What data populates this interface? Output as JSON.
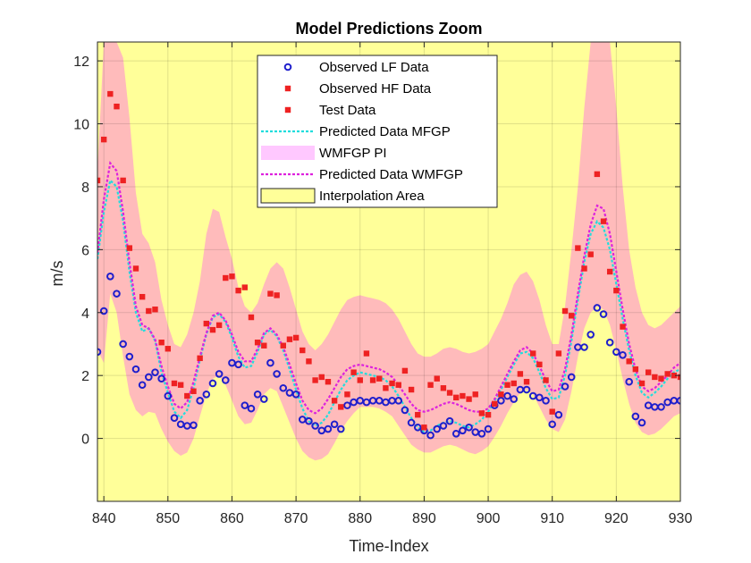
{
  "chart_data": {
    "type": "line",
    "title": "Model Predictions Zoom",
    "xlabel": "Time-Index",
    "ylabel": "m/s",
    "xlim": [
      839,
      930
    ],
    "ylim": [
      -2,
      12.6
    ],
    "xticks": [
      840,
      850,
      860,
      870,
      880,
      890,
      900,
      910,
      920,
      930
    ],
    "yticks": [
      0,
      2,
      4,
      6,
      8,
      10,
      12
    ],
    "grid": true,
    "legend_position": "top-center",
    "colors": {
      "background": "#ffff99",
      "band": "#ffbbbb",
      "lf": "#1f1fcc",
      "hf": "#ee2222",
      "mfgp": "#22dddd",
      "wmfgp": "#dd22dd",
      "wmfgp_pi": "#ffc8ff"
    },
    "legend": [
      {
        "label": "Observed LF Data",
        "kind": "lf"
      },
      {
        "label": "Observed HF Data",
        "kind": "hf"
      },
      {
        "label": "Test Data",
        "kind": "test"
      },
      {
        "label": "Predicted Data MFGP",
        "kind": "mfgp"
      },
      {
        "label": "WMFGP PI",
        "kind": "pi"
      },
      {
        "label": "Predicted Data WMFGP",
        "kind": "wmfgp"
      },
      {
        "label": "Interpolation Area",
        "kind": "area"
      }
    ],
    "lf_data": {
      "x": [
        839,
        840,
        841,
        842,
        843,
        844,
        845,
        846,
        847,
        848,
        849,
        850,
        851,
        852,
        853,
        854,
        855,
        856,
        857,
        858,
        859,
        860,
        861,
        862,
        863,
        864,
        865,
        866,
        867,
        868,
        869,
        870,
        871,
        872,
        873,
        874,
        875,
        876,
        877,
        878,
        879,
        880,
        881,
        882,
        883,
        884,
        885,
        886,
        887,
        888,
        889,
        890,
        891,
        892,
        893,
        894,
        895,
        896,
        897,
        898,
        899,
        900,
        901,
        902,
        903,
        904,
        905,
        906,
        907,
        908,
        909,
        910,
        911,
        912,
        913,
        914,
        915,
        916,
        917,
        918,
        919,
        920,
        921,
        922,
        923,
        924,
        925,
        926,
        927,
        928,
        929,
        930
      ],
      "y": [
        2.75,
        4.05,
        5.15,
        4.6,
        3.0,
        2.6,
        2.2,
        1.7,
        1.95,
        2.1,
        1.9,
        1.35,
        0.65,
        0.45,
        0.4,
        0.42,
        1.2,
        1.4,
        1.75,
        2.05,
        1.85,
        2.4,
        2.35,
        1.05,
        0.95,
        1.4,
        1.25,
        2.4,
        2.05,
        1.6,
        1.45,
        1.4,
        0.6,
        0.55,
        0.4,
        0.25,
        0.3,
        0.45,
        0.3,
        1.05,
        1.15,
        1.2,
        1.15,
        1.2,
        1.2,
        1.15,
        1.2,
        1.2,
        0.9,
        0.5,
        0.35,
        0.25,
        0.1,
        0.3,
        0.4,
        0.55,
        0.15,
        0.25,
        0.35,
        0.2,
        0.15,
        0.3,
        1.05,
        1.2,
        1.35,
        1.25,
        1.55,
        1.55,
        1.35,
        1.3,
        1.2,
        0.45,
        0.75,
        1.65,
        1.95,
        2.9,
        2.9,
        3.3,
        4.15,
        3.95,
        3.05,
        2.75,
        2.65,
        1.8,
        0.7,
        0.5,
        1.05,
        1.0,
        1.0,
        1.15,
        1.2,
        1.2
      ]
    },
    "hf_data": {
      "x": [
        839,
        840,
        841,
        842,
        843,
        844,
        845,
        846,
        847,
        848,
        849,
        850,
        851,
        852,
        853,
        854,
        855,
        856,
        857,
        858,
        859,
        860,
        861,
        862,
        863,
        864,
        865,
        866,
        867,
        868,
        869,
        870,
        871,
        872,
        873,
        874,
        875,
        876,
        877,
        878,
        879,
        880,
        881,
        882,
        883,
        884,
        885,
        886,
        887,
        888,
        889,
        890,
        891,
        892,
        893,
        894,
        895,
        896,
        897,
        898,
        899,
        900,
        901,
        902,
        903,
        904,
        905,
        906,
        907,
        908,
        909,
        910,
        911,
        912,
        913,
        914,
        915,
        916,
        917,
        918,
        919,
        920,
        921,
        922,
        923,
        924,
        925,
        926,
        927,
        928,
        929,
        930
      ],
      "y": [
        8.2,
        9.5,
        10.95,
        10.55,
        8.2,
        6.05,
        5.4,
        4.5,
        4.05,
        4.1,
        3.05,
        2.85,
        1.75,
        1.7,
        1.35,
        1.5,
        2.55,
        3.65,
        3.45,
        3.6,
        5.1,
        5.15,
        4.7,
        4.8,
        3.85,
        3.05,
        2.95,
        4.6,
        4.55,
        2.95,
        3.15,
        3.2,
        2.8,
        2.45,
        1.85,
        1.95,
        1.8,
        1.2,
        1.0,
        1.4,
        2.1,
        1.85,
        2.7,
        1.85,
        1.9,
        1.6,
        1.75,
        1.7,
        2.15,
        1.55,
        0.75,
        0.35,
        1.7,
        1.9,
        1.6,
        1.45,
        1.3,
        1.35,
        1.25,
        1.4,
        0.8,
        0.75,
        1.1,
        1.4,
        1.7,
        1.75,
        2.05,
        1.8,
        2.7,
        2.35,
        1.85,
        0.85,
        2.7,
        4.05,
        3.9,
        6.05,
        5.4,
        5.85,
        8.4,
        6.9,
        5.3,
        4.7,
        3.55,
        2.45,
        2.2,
        1.75,
        2.1,
        1.95,
        1.9,
        2.05,
        2.0,
        1.95
      ]
    },
    "mfgp_pred": {
      "x": [
        839,
        840,
        841,
        842,
        843,
        844,
        845,
        846,
        847,
        848,
        849,
        850,
        851,
        852,
        853,
        854,
        855,
        856,
        857,
        858,
        859,
        860,
        861,
        862,
        863,
        864,
        865,
        866,
        867,
        868,
        869,
        870,
        871,
        872,
        873,
        874,
        875,
        876,
        877,
        878,
        879,
        880,
        881,
        882,
        883,
        884,
        885,
        886,
        887,
        888,
        889,
        890,
        891,
        892,
        893,
        894,
        895,
        896,
        897,
        898,
        899,
        900,
        901,
        902,
        903,
        904,
        905,
        906,
        907,
        908,
        909,
        910,
        911,
        912,
        913,
        914,
        915,
        916,
        917,
        918,
        919,
        920,
        921,
        922,
        923,
        924,
        925,
        926,
        927,
        928,
        929,
        930
      ],
      "y": [
        5.7,
        7.2,
        8.2,
        8.0,
        6.9,
        5.3,
        4.0,
        3.4,
        3.5,
        3.1,
        2.1,
        1.45,
        0.85,
        0.65,
        0.9,
        1.6,
        2.5,
        3.3,
        3.85,
        3.95,
        3.7,
        3.2,
        2.6,
        2.25,
        2.3,
        2.75,
        3.3,
        3.45,
        3.25,
        2.8,
        2.2,
        1.55,
        0.95,
        0.55,
        0.4,
        0.5,
        0.75,
        1.15,
        1.55,
        1.85,
        2.0,
        2.1,
        2.05,
        2.0,
        1.95,
        1.85,
        1.65,
        1.35,
        1.0,
        0.65,
        0.35,
        0.2,
        0.25,
        0.4,
        0.5,
        0.55,
        0.5,
        0.4,
        0.35,
        0.45,
        0.6,
        0.85,
        1.2,
        1.55,
        1.95,
        2.35,
        2.7,
        2.75,
        2.55,
        2.1,
        1.6,
        1.25,
        1.3,
        2.0,
        3.1,
        4.4,
        5.6,
        6.5,
        6.9,
        6.7,
        6.0,
        4.9,
        3.8,
        2.8,
        2.0,
        1.45,
        1.3,
        1.45,
        1.65,
        1.9,
        2.1,
        2.2
      ]
    },
    "wmfgp_pred": {
      "x": [
        839,
        840,
        841,
        842,
        843,
        844,
        845,
        846,
        847,
        848,
        849,
        850,
        851,
        852,
        853,
        854,
        855,
        856,
        857,
        858,
        859,
        860,
        861,
        862,
        863,
        864,
        865,
        866,
        867,
        868,
        869,
        870,
        871,
        872,
        873,
        874,
        875,
        876,
        877,
        878,
        879,
        880,
        881,
        882,
        883,
        884,
        885,
        886,
        887,
        888,
        889,
        890,
        891,
        892,
        893,
        894,
        895,
        896,
        897,
        898,
        899,
        900,
        901,
        902,
        903,
        904,
        905,
        906,
        907,
        908,
        909,
        910,
        911,
        912,
        913,
        914,
        915,
        916,
        917,
        918,
        919,
        920,
        921,
        922,
        923,
        924,
        925,
        926,
        927,
        928,
        929,
        930
      ],
      "y": [
        5.9,
        7.6,
        8.75,
        8.5,
        7.2,
        5.6,
        4.2,
        3.6,
        3.5,
        3.15,
        2.3,
        1.65,
        1.1,
        0.95,
        1.15,
        1.8,
        2.6,
        3.35,
        3.9,
        4.0,
        3.75,
        3.3,
        2.75,
        2.45,
        2.45,
        2.85,
        3.35,
        3.5,
        3.3,
        2.9,
        2.35,
        1.75,
        1.2,
        0.9,
        0.8,
        0.95,
        1.25,
        1.6,
        1.95,
        2.2,
        2.3,
        2.35,
        2.3,
        2.25,
        2.2,
        2.1,
        1.95,
        1.7,
        1.4,
        1.1,
        0.9,
        0.85,
        0.9,
        1.0,
        1.1,
        1.15,
        1.1,
        1.0,
        0.9,
        0.85,
        0.85,
        0.95,
        1.25,
        1.65,
        2.05,
        2.45,
        2.8,
        2.9,
        2.7,
        2.3,
        1.85,
        1.5,
        1.55,
        2.2,
        3.3,
        4.6,
        5.8,
        6.8,
        7.4,
        7.3,
        6.5,
        5.3,
        4.1,
        3.0,
        2.2,
        1.65,
        1.5,
        1.6,
        1.8,
        2.0,
        2.25,
        2.4
      ]
    },
    "pi_band": {
      "x": [
        839,
        840,
        841,
        842,
        843,
        844,
        845,
        846,
        847,
        848,
        849,
        850,
        851,
        852,
        853,
        854,
        855,
        856,
        857,
        858,
        859,
        860,
        861,
        862,
        863,
        864,
        865,
        866,
        867,
        868,
        869,
        870,
        871,
        872,
        873,
        874,
        875,
        876,
        877,
        878,
        879,
        880,
        881,
        882,
        883,
        884,
        885,
        886,
        887,
        888,
        889,
        890,
        891,
        892,
        893,
        894,
        895,
        896,
        897,
        898,
        899,
        900,
        901,
        902,
        903,
        904,
        905,
        906,
        907,
        908,
        909,
        910,
        911,
        912,
        913,
        914,
        915,
        916,
        917,
        918,
        919,
        920,
        921,
        922,
        923,
        924,
        925,
        926,
        927,
        928,
        929,
        930
      ],
      "lower": [
        2.8,
        2.4,
        4.6,
        4.0,
        2.6,
        1.4,
        0.9,
        0.7,
        0.85,
        0.8,
        0.3,
        -0.1,
        -0.4,
        -0.55,
        -0.45,
        0.0,
        0.7,
        1.4,
        1.9,
        2.0,
        1.7,
        1.2,
        0.7,
        0.45,
        0.5,
        0.9,
        1.4,
        1.6,
        1.5,
        1.0,
        0.5,
        0.0,
        -0.4,
        -0.6,
        -0.7,
        -0.65,
        -0.5,
        -0.15,
        0.25,
        0.55,
        0.8,
        1.0,
        1.0,
        1.0,
        0.95,
        0.85,
        0.7,
        0.4,
        0.1,
        -0.2,
        -0.35,
        -0.45,
        -0.45,
        -0.35,
        -0.25,
        -0.2,
        -0.25,
        -0.35,
        -0.45,
        -0.5,
        -0.4,
        -0.25,
        0.05,
        0.4,
        0.8,
        1.15,
        1.45,
        1.55,
        1.4,
        1.0,
        0.6,
        0.3,
        0.2,
        0.6,
        1.5,
        2.6,
        3.5,
        4.0,
        4.2,
        4.1,
        3.6,
        2.8,
        1.9,
        1.1,
        0.5,
        0.2,
        0.1,
        0.15,
        0.3,
        0.5,
        0.7,
        0.8
      ],
      "upper": [
        8.5,
        12.6,
        12.6,
        12.6,
        12.1,
        10.2,
        7.8,
        6.5,
        6.2,
        5.6,
        4.4,
        3.6,
        3.0,
        2.9,
        3.3,
        4.0,
        5.0,
        6.5,
        7.3,
        7.2,
        6.4,
        5.7,
        4.8,
        4.2,
        4.0,
        4.3,
        4.9,
        5.4,
        5.6,
        5.4,
        4.8,
        4.1,
        3.4,
        3.0,
        2.8,
        3.0,
        3.3,
        3.7,
        4.1,
        4.4,
        4.5,
        4.55,
        4.5,
        4.45,
        4.4,
        4.3,
        4.1,
        3.8,
        3.4,
        3.0,
        2.7,
        2.6,
        2.6,
        2.7,
        2.85,
        2.9,
        2.85,
        2.75,
        2.7,
        2.75,
        2.85,
        3.0,
        3.4,
        3.8,
        4.3,
        4.9,
        5.2,
        5.3,
        5.0,
        4.4,
        3.6,
        3.0,
        3.0,
        4.2,
        6.0,
        8.0,
        10.5,
        12.6,
        12.6,
        12.6,
        12.6,
        10.5,
        8.0,
        6.0,
        4.8,
        4.0,
        3.6,
        3.5,
        3.6,
        3.8,
        4.0,
        4.2
      ]
    }
  }
}
